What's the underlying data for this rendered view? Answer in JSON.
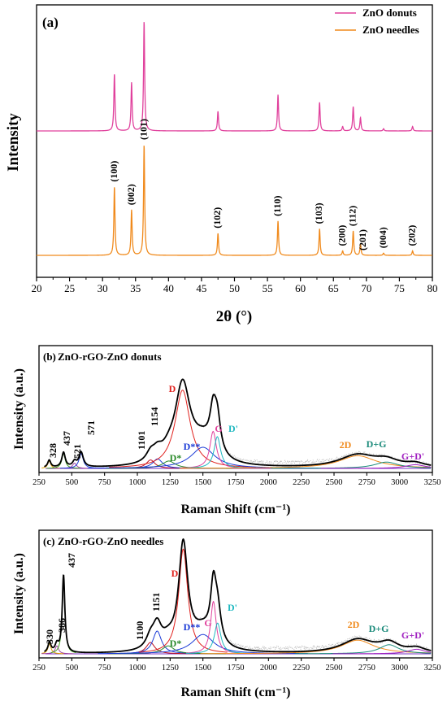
{
  "chart_data": [
    {
      "panel": "(a)",
      "type": "line",
      "xlabel": "2θ (°)",
      "ylabel": "Intensity",
      "xlim": [
        20,
        80
      ],
      "xticks": [
        20,
        25,
        30,
        35,
        40,
        45,
        50,
        55,
        60,
        65,
        70,
        75,
        80
      ],
      "yticks_shown": false,
      "legend": {
        "placement": "top-right"
      },
      "series": [
        {
          "name": "ZnO donuts",
          "color": "#e0409c",
          "baseline": 0.46,
          "peaks": [
            [
              31.8,
              0.52
            ],
            [
              34.4,
              0.44
            ],
            [
              36.3,
              1.0
            ],
            [
              47.5,
              0.18
            ],
            [
              56.6,
              0.33
            ],
            [
              62.9,
              0.26
            ],
            [
              66.4,
              0.04
            ],
            [
              68.0,
              0.22
            ],
            [
              69.1,
              0.12
            ],
            [
              72.6,
              0.02
            ],
            [
              77.0,
              0.04
            ]
          ]
        },
        {
          "name": "ZnO needles",
          "color": "#f08a1c",
          "baseline": 0.0,
          "peaks": [
            [
              31.8,
              0.62
            ],
            [
              34.4,
              0.41
            ],
            [
              36.3,
              1.0
            ],
            [
              47.5,
              0.2
            ],
            [
              56.6,
              0.31
            ],
            [
              62.9,
              0.24
            ],
            [
              66.4,
              0.04
            ],
            [
              68.0,
              0.22
            ],
            [
              69.1,
              0.1
            ],
            [
              72.6,
              0.02
            ],
            [
              77.0,
              0.04
            ]
          ]
        }
      ],
      "annotations": [
        {
          "text": "(100)",
          "x": 31.8
        },
        {
          "text": "(002)",
          "x": 34.4
        },
        {
          "text": "(101)",
          "x": 36.3
        },
        {
          "text": "(102)",
          "x": 47.5
        },
        {
          "text": "(110)",
          "x": 56.6
        },
        {
          "text": "(103)",
          "x": 62.9
        },
        {
          "text": "(200)",
          "x": 66.4
        },
        {
          "text": "(112)",
          "x": 68.0
        },
        {
          "text": "(201)",
          "x": 69.5
        },
        {
          "text": "(004)",
          "x": 72.6
        },
        {
          "text": "(202)",
          "x": 77.0
        }
      ]
    },
    {
      "panel": "(b)",
      "type": "line",
      "title": "ZnO-rGO-ZnO donuts",
      "xlabel": "Raman Shift (cm⁻¹)",
      "ylabel": "Intensity (a.u.)",
      "xlim": [
        250,
        3250
      ],
      "xticks": [
        250,
        500,
        750,
        1000,
        1250,
        1500,
        1750,
        2000,
        2250,
        2500,
        2750,
        3000,
        3250
      ],
      "yticks_shown": false,
      "band_labels": [
        {
          "text": "328",
          "x": 328,
          "color": "#000000"
        },
        {
          "text": "437",
          "x": 437,
          "color": "#000000"
        },
        {
          "text": "521",
          "x": 521,
          "color": "#000000"
        },
        {
          "text": "571",
          "x": 571,
          "color": "#000000"
        },
        {
          "text": "1101",
          "x": 1101,
          "color": "#000000"
        },
        {
          "text": "1154",
          "x": 1154,
          "color": "#000000"
        },
        {
          "text": "D",
          "x": 1345,
          "color": "#e0201c"
        },
        {
          "text": "D*",
          "x": 1240,
          "color": "#2a8a2a"
        },
        {
          "text": "D**",
          "x": 1500,
          "color": "#1a3ad6"
        },
        {
          "text": "G",
          "x": 1580,
          "color": "#e0409c"
        },
        {
          "text": "D'",
          "x": 1620,
          "color": "#1fb8c0"
        },
        {
          "text": "2D",
          "x": 2680,
          "color": "#f08a1c"
        },
        {
          "text": "D+G",
          "x": 2900,
          "color": "#1a8a7a"
        },
        {
          "text": "G+D'",
          "x": 3120,
          "color": "#a020c0"
        }
      ],
      "components": [
        {
          "label": "328",
          "center": 328,
          "height": 0.07,
          "width": 14,
          "color": "#e0a000"
        },
        {
          "label": "437",
          "center": 437,
          "height": 0.14,
          "width": 16,
          "color": "#40a020"
        },
        {
          "label": "521",
          "center": 521,
          "height": 0.05,
          "width": 18,
          "color": "#a040a0"
        },
        {
          "label": "571",
          "center": 571,
          "height": 0.14,
          "width": 20,
          "color": "#1a3ad6"
        },
        {
          "label": "1101",
          "center": 1101,
          "height": 0.08,
          "width": 40,
          "color": "#c01020"
        },
        {
          "label": "1154",
          "center": 1154,
          "height": 0.09,
          "width": 45,
          "color": "#1a3ad6"
        },
        {
          "label": "D*",
          "center": 1240,
          "height": 0.07,
          "width": 60,
          "color": "#2a8a2a"
        },
        {
          "label": "D",
          "center": 1345,
          "height": 0.74,
          "width": 70,
          "color": "#e0201c"
        },
        {
          "label": "D**",
          "center": 1500,
          "height": 0.2,
          "width": 110,
          "color": "#1a3ad6"
        },
        {
          "label": "G",
          "center": 1578,
          "height": 0.35,
          "width": 30,
          "color": "#e0409c"
        },
        {
          "label": "D'",
          "center": 1610,
          "height": 0.3,
          "width": 30,
          "color": "#1fb8c0"
        },
        {
          "label": "2D",
          "center": 2680,
          "height": 0.12,
          "width": 170,
          "color": "#f08a1c"
        },
        {
          "label": "D+G",
          "center": 2900,
          "height": 0.06,
          "width": 110,
          "color": "#1a8a7a"
        },
        {
          "label": "G+D'",
          "center": 3120,
          "height": 0.035,
          "width": 90,
          "color": "#a020c0"
        }
      ],
      "envelope_color": "#000000",
      "raw_color": "#b8b8b8"
    },
    {
      "panel": "(c)",
      "type": "line",
      "title": "ZnO-rGO-ZnO needles",
      "xlabel": "Raman Shift (cm⁻¹)",
      "ylabel": "Intensity (a.u.)",
      "xlim": [
        250,
        3250
      ],
      "xticks": [
        250,
        500,
        750,
        1000,
        1250,
        1500,
        1750,
        2000,
        2250,
        2500,
        2750,
        3000,
        3250
      ],
      "yticks_shown": false,
      "band_labels": [
        {
          "text": "330",
          "x": 330,
          "color": "#000000"
        },
        {
          "text": "386",
          "x": 386,
          "color": "#000000"
        },
        {
          "text": "437",
          "x": 437,
          "color": "#000000"
        },
        {
          "text": "1100",
          "x": 1100,
          "color": "#000000"
        },
        {
          "text": "1151",
          "x": 1151,
          "color": "#000000"
        },
        {
          "text": "D",
          "x": 1350,
          "color": "#e0201c"
        },
        {
          "text": "D*",
          "x": 1235,
          "color": "#2a8a2a"
        },
        {
          "text": "D**",
          "x": 1500,
          "color": "#1a3ad6"
        },
        {
          "text": "G",
          "x": 1580,
          "color": "#e0409c"
        },
        {
          "text": "D'",
          "x": 1620,
          "color": "#1fb8c0"
        },
        {
          "text": "2D",
          "x": 2680,
          "color": "#f08a1c"
        },
        {
          "text": "D+G",
          "x": 2920,
          "color": "#1a8a7a"
        },
        {
          "text": "G+D'",
          "x": 3130,
          "color": "#a020c0"
        }
      ],
      "components": [
        {
          "label": "330",
          "center": 330,
          "height": 0.09,
          "width": 14,
          "color": "#e0a000"
        },
        {
          "label": "386",
          "center": 386,
          "height": 0.07,
          "width": 16,
          "color": "#a040a0"
        },
        {
          "label": "437",
          "center": 437,
          "height": 0.68,
          "width": 12,
          "color": "#40a020"
        },
        {
          "label": "1100",
          "center": 1100,
          "height": 0.1,
          "width": 40,
          "color": "#c01020"
        },
        {
          "label": "1151",
          "center": 1151,
          "height": 0.2,
          "width": 40,
          "color": "#1a3ad6"
        },
        {
          "label": "D*",
          "center": 1235,
          "height": 0.07,
          "width": 55,
          "color": "#2a8a2a"
        },
        {
          "label": "D",
          "center": 1350,
          "height": 0.92,
          "width": 42,
          "color": "#e0201c"
        },
        {
          "label": "D**",
          "center": 1500,
          "height": 0.17,
          "width": 100,
          "color": "#1a3ad6"
        },
        {
          "label": "G",
          "center": 1580,
          "height": 0.46,
          "width": 26,
          "color": "#e0409c"
        },
        {
          "label": "D'",
          "center": 1612,
          "height": 0.27,
          "width": 30,
          "color": "#1fb8c0"
        },
        {
          "label": "2D",
          "center": 2680,
          "height": 0.12,
          "width": 150,
          "color": "#f08a1c"
        },
        {
          "label": "D+G",
          "center": 2920,
          "height": 0.08,
          "width": 90,
          "color": "#1a8a7a"
        },
        {
          "label": "G+D'",
          "center": 3130,
          "height": 0.04,
          "width": 80,
          "color": "#a020c0"
        }
      ],
      "envelope_color": "#000000",
      "raw_color": "#b8b8b8"
    }
  ]
}
